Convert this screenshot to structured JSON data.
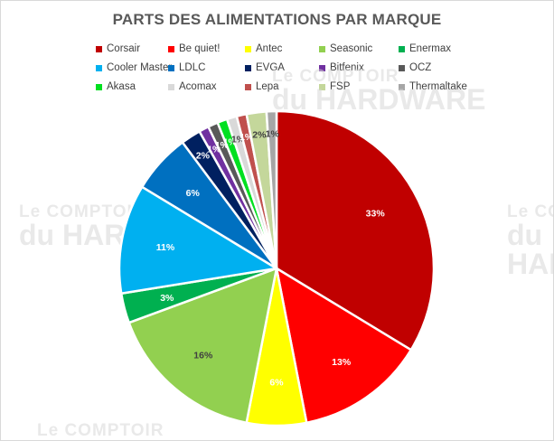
{
  "chart_data": {
    "type": "pie",
    "title": "PARTS DES ALIMENTATIONS PAR MARQUE",
    "series": [
      {
        "name": "Corsair",
        "value": 33,
        "label": "33%",
        "color": "#c00000"
      },
      {
        "name": "Be quiet!",
        "value": 13,
        "label": "13%",
        "color": "#ff0000"
      },
      {
        "name": "Antec",
        "value": 6,
        "label": "6%",
        "color": "#ffff00"
      },
      {
        "name": "Seasonic",
        "value": 16,
        "label": "16%",
        "color": "#92d050"
      },
      {
        "name": "Enermax",
        "value": 3,
        "label": "3%",
        "color": "#00b050"
      },
      {
        "name": "Cooler Master",
        "value": 11,
        "label": "11%",
        "color": "#00b0f0"
      },
      {
        "name": "LDLC",
        "value": 6,
        "label": "6%",
        "color": "#0070c0"
      },
      {
        "name": "EVGA",
        "value": 2,
        "label": "2%",
        "color": "#002060"
      },
      {
        "name": "Bitfenix",
        "value": 1,
        "label": "1%",
        "color": "#7030a0"
      },
      {
        "name": "OCZ",
        "value": 1,
        "label": "1%",
        "color": "#595959"
      },
      {
        "name": "Akasa",
        "value": 1,
        "label": "1%",
        "color": "#00e020"
      },
      {
        "name": "Acomax",
        "value": 1,
        "label": "1%",
        "color": "#d9d9d9"
      },
      {
        "name": "Lepa",
        "value": 1,
        "label": "1%",
        "color": "#c0504d"
      },
      {
        "name": "FSP",
        "value": 2,
        "label": "2%",
        "color": "#c4d79b"
      },
      {
        "name": "Thermaltake",
        "value": 1,
        "label": "1%",
        "color": "#a6a6a6"
      }
    ],
    "legend_position": "top"
  },
  "watermark": {
    "line1": "Le COMPTOIR",
    "line2": "du HARDWARE"
  }
}
